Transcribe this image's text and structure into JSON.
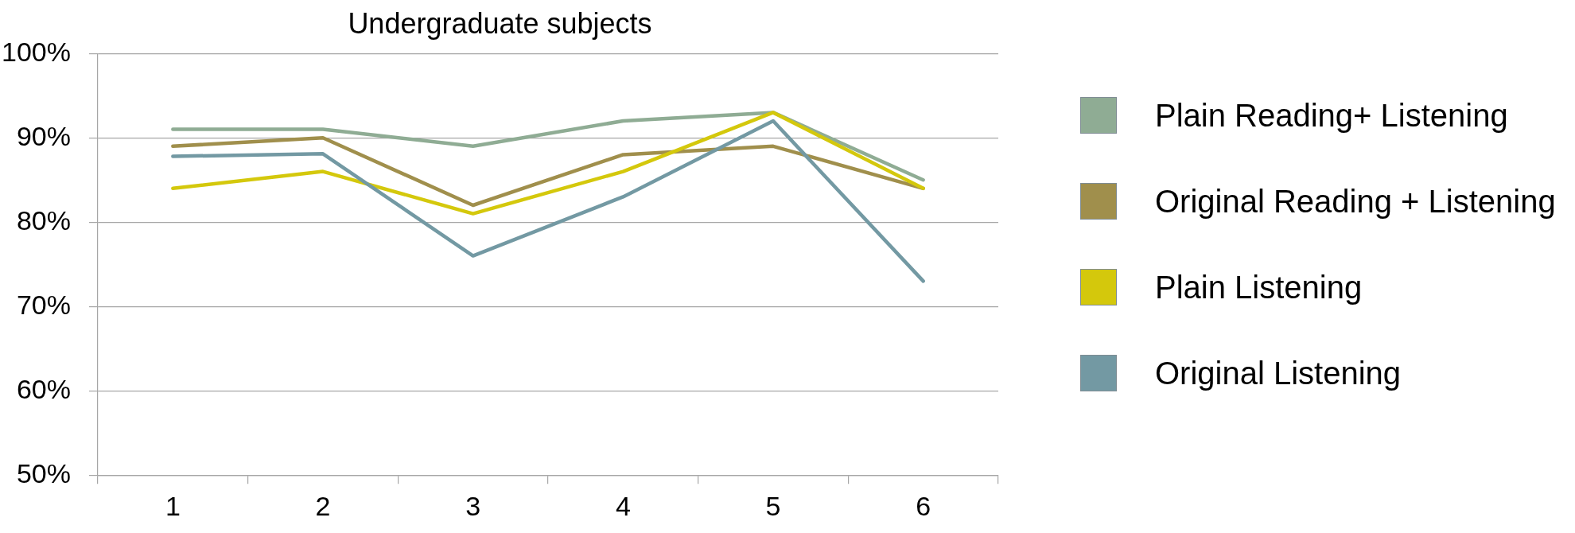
{
  "chart_data": {
    "type": "line",
    "title": "Undergraduate subjects",
    "categories": [
      "1",
      "2",
      "3",
      "4",
      "5",
      "6"
    ],
    "series": [
      {
        "name": "Plain Reading+ Listening",
        "color": "#8fac94",
        "values": [
          91,
          91,
          89,
          92,
          93,
          85
        ]
      },
      {
        "name": "Original Reading + Listening",
        "color": "#a08f4c",
        "values": [
          89,
          90,
          82,
          88,
          89,
          84
        ]
      },
      {
        "name": "Plain Listening",
        "color": "#d4c80c",
        "values": [
          84,
          86,
          81,
          86,
          93,
          84
        ]
      },
      {
        "name": "Original Listening",
        "color": "#7399a3",
        "values": [
          87.8,
          88.1,
          76,
          83,
          92,
          73
        ]
      }
    ],
    "ylim": [
      50,
      100
    ],
    "yticks": [
      {
        "value": 50,
        "label": "50%"
      },
      {
        "value": 60,
        "label": "60%"
      },
      {
        "value": 70,
        "label": "70%"
      },
      {
        "value": 80,
        "label": "80%"
      },
      {
        "value": 90,
        "label": "90%"
      },
      {
        "value": 100,
        "label": "100%"
      }
    ],
    "grid": "y",
    "legend": "right"
  }
}
